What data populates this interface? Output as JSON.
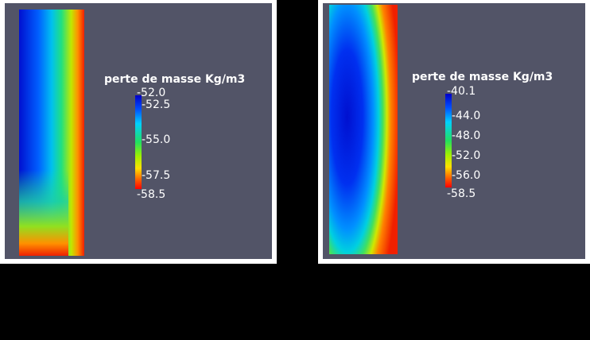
{
  "panels": [
    {
      "legend": {
        "title": "perte de masse Kg/m3",
        "labels": [
          "-52.0",
          "-52.5",
          "-55.0",
          "-57.5",
          "-58.5"
        ]
      }
    },
    {
      "legend": {
        "title": "perte de masse Kg/m3",
        "labels": [
          "-40.1",
          "-44.0",
          "-48.0",
          "-52.0",
          "-56.0",
          "-58.5"
        ]
      }
    }
  ]
}
